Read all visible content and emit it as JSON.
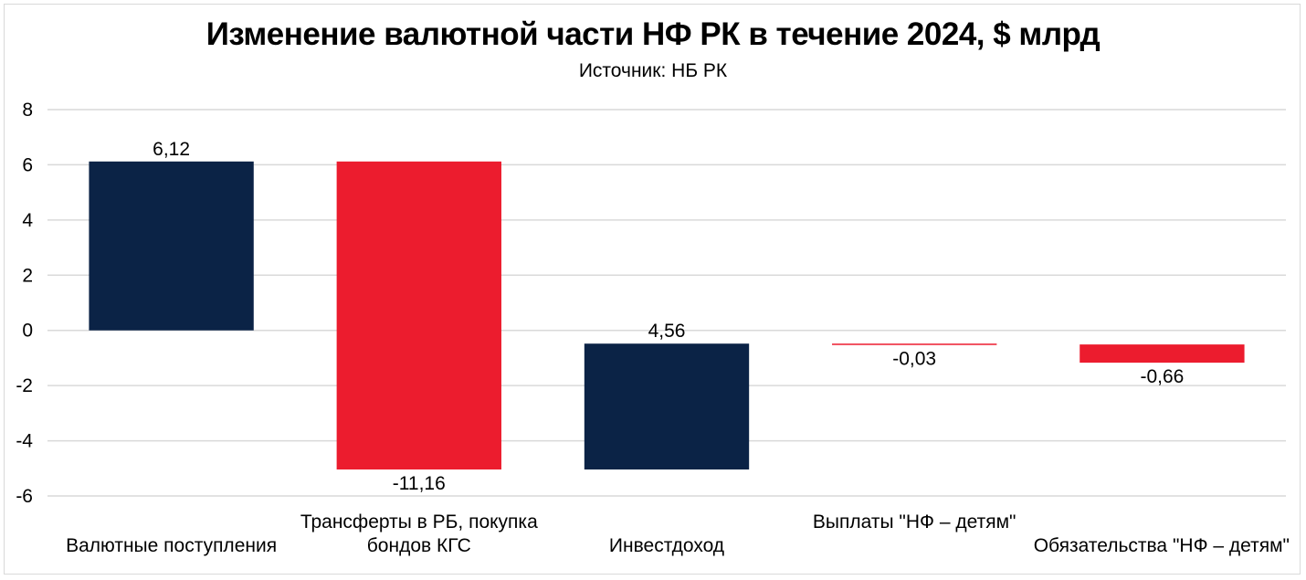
{
  "chart_data": {
    "type": "bar",
    "subtype": "waterfall",
    "title": "Изменение валютной части НФ РК в течение 2024, $ млрд",
    "subtitle": "Источник: НБ РК",
    "xlabel": "",
    "ylabel": "",
    "ylim": [
      -6,
      8
    ],
    "yticks": [
      8,
      6,
      4,
      2,
      0,
      -2,
      -4,
      -6
    ],
    "grid": true,
    "categories": [
      [
        "Валютные поступления"
      ],
      [
        "Трансферты в РБ, покупка",
        "бондов КГС"
      ],
      [
        "Инвестдоход"
      ],
      [
        "Выплаты \"НФ – детям\""
      ],
      [
        "Обязательства \"НФ – детям\""
      ]
    ],
    "values": [
      6.12,
      -11.16,
      4.56,
      -0.03,
      -0.66
    ],
    "value_labels": [
      "6,12",
      "-11,16",
      "4,56",
      "-0,03",
      "-0,66"
    ],
    "colors": {
      "positive": "#0b2346",
      "negative": "#ec1c2e",
      "grid": "#d9d9d9"
    }
  }
}
